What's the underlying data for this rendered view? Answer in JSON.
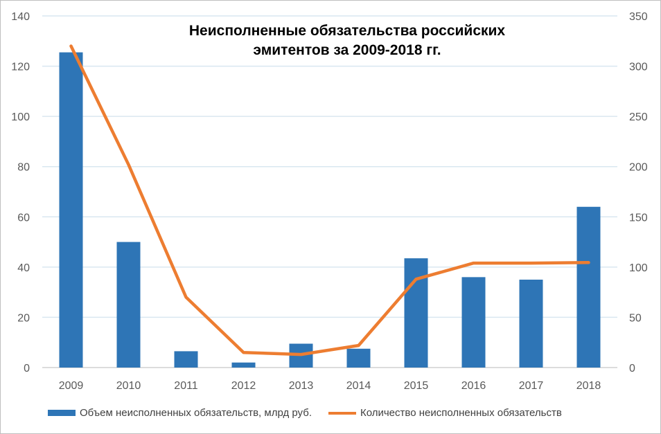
{
  "chart_data": {
    "type": "bar",
    "title": [
      "Неисполненные обязательства российских",
      "эмитентов за 2009-2018 гг."
    ],
    "categories": [
      "2009",
      "2010",
      "2011",
      "2012",
      "2013",
      "2014",
      "2015",
      "2016",
      "2017",
      "2018"
    ],
    "series": [
      {
        "name": "Объем неисполненных обязательств, млрд руб.",
        "type": "bar",
        "axis": "left",
        "color": "#2e75b6",
        "values": [
          125.5,
          50,
          6.5,
          2,
          9.5,
          7.5,
          43.5,
          36,
          35,
          64
        ]
      },
      {
        "name": "Количество неисполненных обязательств",
        "type": "line",
        "axis": "right",
        "color": "#ed7d31",
        "values": [
          320,
          202,
          70,
          15,
          13,
          22,
          88,
          104,
          104,
          104.5
        ]
      }
    ],
    "y_left": {
      "ylim": [
        0,
        140
      ],
      "ticks": [
        "0",
        "20",
        "40",
        "60",
        "80",
        "100",
        "120",
        "140"
      ]
    },
    "y_right": {
      "ylim": [
        0,
        350
      ],
      "ticks": [
        "0",
        "50",
        "100",
        "150",
        "200",
        "250",
        "300",
        "350"
      ]
    },
    "grid": true,
    "legend_position": "bottom",
    "gridline_color": "#d9e7f0"
  }
}
